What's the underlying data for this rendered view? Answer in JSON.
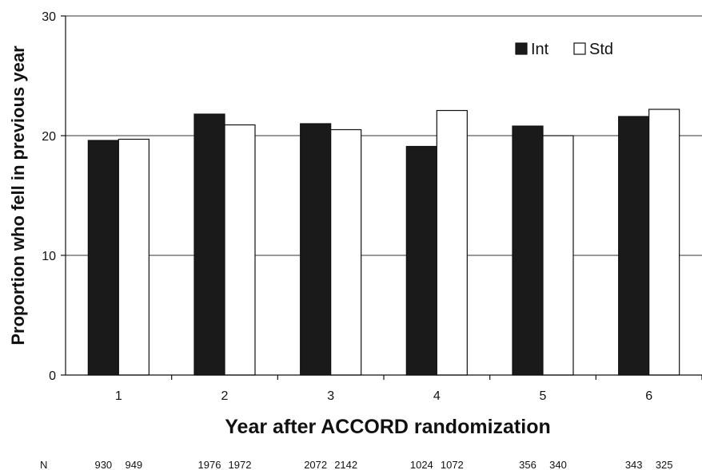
{
  "chart_data": {
    "type": "bar",
    "title": "",
    "xlabel": "Year after ACCORD randomization",
    "ylabel": "Proportion who fell in previous year",
    "categories": [
      "1",
      "2",
      "3",
      "4",
      "5",
      "6"
    ],
    "series": [
      {
        "name": "Int",
        "values": [
          19.6,
          21.8,
          21.0,
          19.1,
          20.8,
          21.6
        ],
        "color": "#1a1a1a"
      },
      {
        "name": "Std",
        "values": [
          19.7,
          20.9,
          20.5,
          22.1,
          20.0,
          22.2
        ],
        "color": "#ffffff"
      }
    ],
    "ylim": [
      0,
      30
    ],
    "yticks": [
      "0",
      "10",
      "20",
      "30"
    ],
    "grid": true,
    "legend_position": "top-right",
    "n_label": "N",
    "n_values": [
      [
        "930",
        "949"
      ],
      [
        "1976",
        "1972"
      ],
      [
        "2072",
        "2142"
      ],
      [
        "1024",
        "1072"
      ],
      [
        "356",
        "340"
      ],
      [
        "343",
        "325"
      ]
    ]
  }
}
